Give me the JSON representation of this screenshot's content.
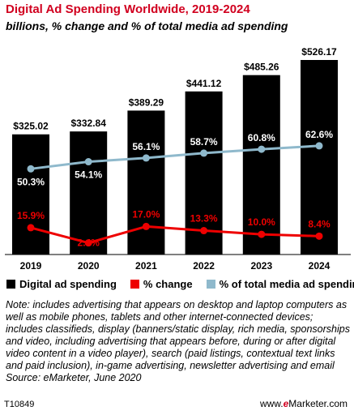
{
  "title": "Digital Ad Spending Worldwide, 2019-2024",
  "subtitle": "billions, % change and % of total media ad spending",
  "colors": {
    "title": "#d1001f",
    "bars": "#000000",
    "change_line": "#ee0000",
    "share_line": "#8fb9cc"
  },
  "chart_data": {
    "type": "bar",
    "categories": [
      "2019",
      "2020",
      "2021",
      "2022",
      "2023",
      "2024"
    ],
    "series": [
      {
        "name": "Digital ad spending",
        "type": "bar",
        "values": [
          325.02,
          332.84,
          389.29,
          441.12,
          485.26,
          526.17
        ],
        "labels": [
          "$325.02",
          "$332.84",
          "$389.29",
          "$441.12",
          "$485.26",
          "$526.17"
        ]
      },
      {
        "name": "% change",
        "type": "line",
        "values": [
          15.9,
          2.4,
          17.0,
          13.3,
          10.0,
          8.4
        ],
        "labels": [
          "15.9%",
          "2.4%",
          "17.0%",
          "13.3%",
          "10.0%",
          "8.4%"
        ]
      },
      {
        "name": "% of total media ad spending",
        "type": "line",
        "values": [
          50.3,
          54.1,
          56.1,
          58.7,
          60.8,
          62.6
        ],
        "labels": [
          "50.3%",
          "54.1%",
          "56.1%",
          "58.7%",
          "60.8%",
          "62.6%"
        ]
      }
    ],
    "legend_position": "bottom",
    "grid": false
  },
  "note": "Note: includes advertising that appears on desktop and laptop computers as well as mobile phones, tablets and other internet-connected devices; includes classifieds, display (banners/static display, rich media, sponsorships and video, including advertising that appears before, during or after digital video content in a video player), search (paid listings, contextual text links and paid inclusion), in-game advertising, newsletter advertising and email",
  "source": "Source: eMarketer, June 2020",
  "chart_id": "T10849",
  "brand": {
    "prefix": "www.",
    "e": "e",
    "name": "Marketer",
    "suffix": ".com"
  }
}
